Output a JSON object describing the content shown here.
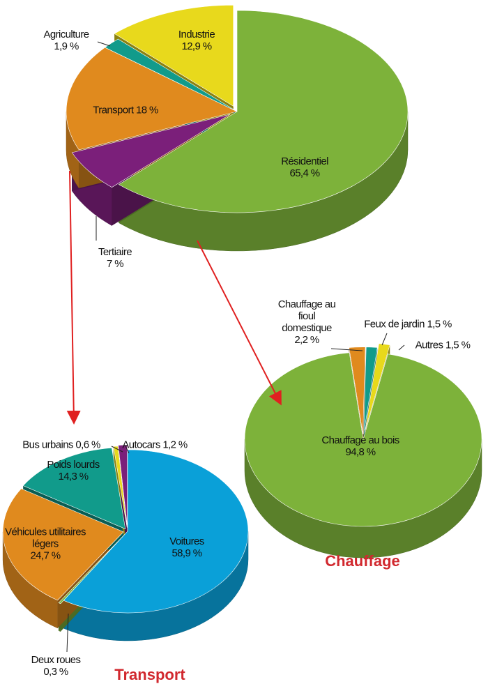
{
  "chart_data": [
    {
      "type": "pie",
      "categories": [
        "Résidentiel",
        "Tertiaire",
        "Transport",
        "Agriculture",
        "Industrie"
      ],
      "values": [
        65.4,
        7,
        18,
        1.9,
        12.9
      ],
      "value_labels": [
        "65,4 %",
        "7 %",
        "18 %",
        "1,9 %",
        "12,9 %"
      ],
      "colors": [
        "#7db23a",
        "#7b1f7a",
        "#e08a1e",
        "#119b8b",
        "#e8d91c"
      ]
    },
    {
      "type": "pie",
      "title": "Chauffage",
      "categories": [
        "Chauffage au bois",
        "Chauffage au fioul domestique",
        "Feux de jardin",
        "Autres"
      ],
      "values": [
        94.8,
        2.2,
        1.5,
        1.5
      ],
      "value_labels": [
        "94,8 %",
        "2,2 %",
        "1,5 %",
        "1,5 %"
      ],
      "colors": [
        "#7db23a",
        "#e08a1e",
        "#119b8b",
        "#e8d91c"
      ]
    },
    {
      "type": "pie",
      "title": "Transport",
      "categories": [
        "Voitures",
        "Deux roues",
        "Véhicules utilitaires légers",
        "Poids lourds",
        "Bus urbains",
        "Autocars"
      ],
      "values": [
        58.9,
        0.3,
        24.7,
        14.3,
        0.6,
        1.2
      ],
      "value_labels": [
        "58,9 %",
        "0,3 %",
        "24,7 %",
        "14,3 %",
        "0,6 %",
        "1,2 %"
      ],
      "colors": [
        "#0aa0d8",
        "#7db23a",
        "#e08a1e",
        "#119b8b",
        "#e8d91c",
        "#7b1f7a"
      ]
    }
  ]
}
